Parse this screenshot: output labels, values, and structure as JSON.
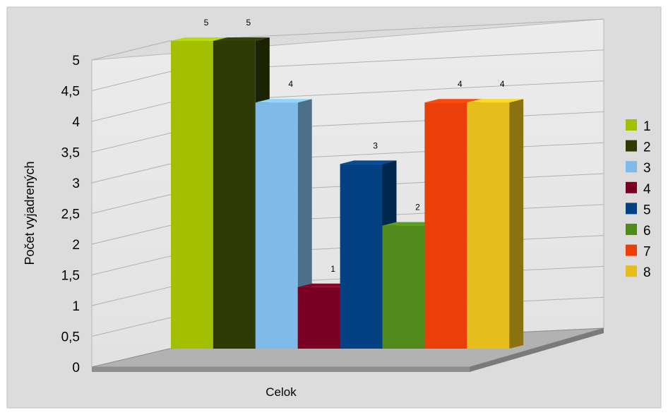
{
  "chart_data": {
    "type": "bar",
    "title": "",
    "xlabel": "Celok",
    "ylabel": "Počet vyjadrených",
    "categories": [
      "Celok"
    ],
    "ylim": [
      0,
      5
    ],
    "y_ticks": [
      "0",
      "0,5",
      "1",
      "1,5",
      "2",
      "2,5",
      "3",
      "3,5",
      "4",
      "4,5",
      "5"
    ],
    "grid": true,
    "legend": "right",
    "series": [
      {
        "name": "1",
        "values": [
          5
        ],
        "label": "5",
        "color": "#a2c000"
      },
      {
        "name": "2",
        "values": [
          5
        ],
        "label": "5",
        "color": "#2e3b05"
      },
      {
        "name": "3",
        "values": [
          4
        ],
        "label": "4",
        "color": "#7fbae9"
      },
      {
        "name": "4",
        "values": [
          1
        ],
        "label": "1",
        "color": "#7a0024"
      },
      {
        "name": "5",
        "values": [
          3
        ],
        "label": "3",
        "color": "#034182"
      },
      {
        "name": "6",
        "values": [
          2
        ],
        "label": "2",
        "color": "#4f8a1a"
      },
      {
        "name": "7",
        "values": [
          4
        ],
        "label": "4",
        "color": "#ea3f09"
      },
      {
        "name": "8",
        "values": [
          4
        ],
        "label": "4",
        "color": "#e6be1c"
      }
    ]
  }
}
